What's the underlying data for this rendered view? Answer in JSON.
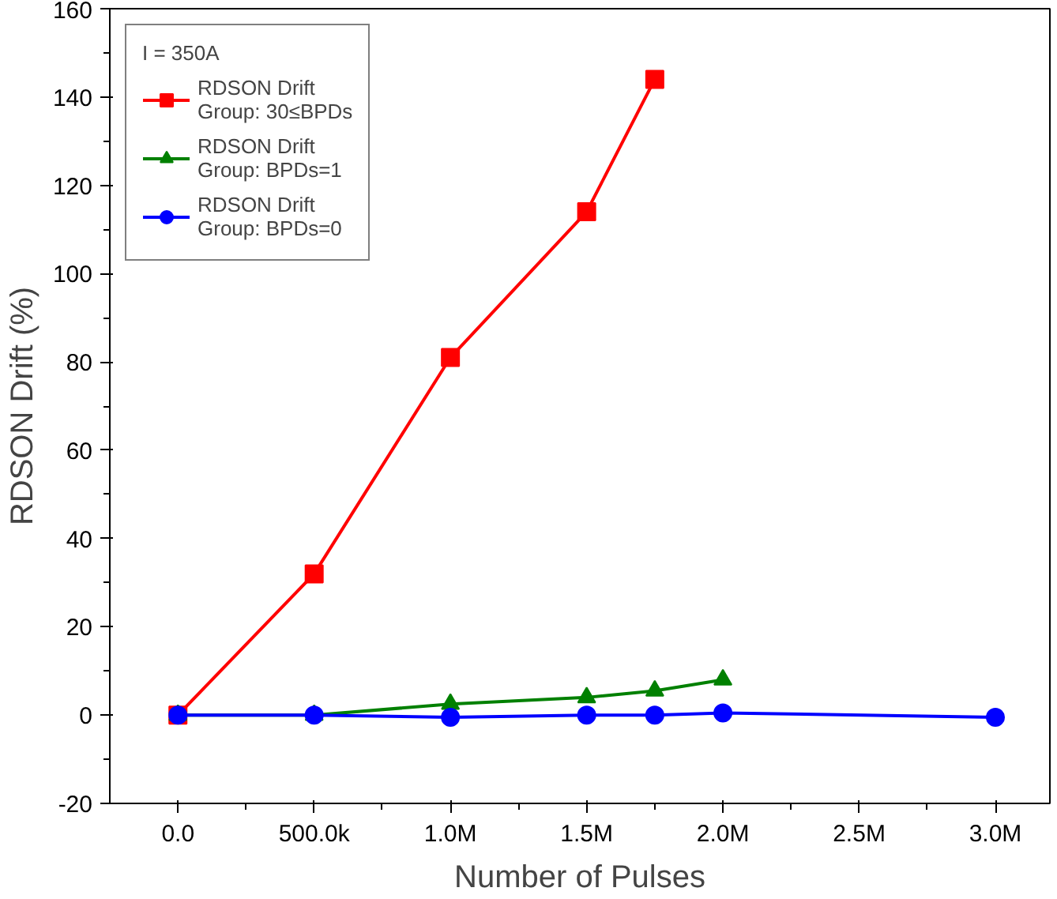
{
  "chart_data": {
    "type": "line",
    "xlabel": "Number of Pulses",
    "ylabel": "RDSON Drift (%)",
    "legend_title": "I = 350A",
    "xlim": [
      -250000,
      3200000
    ],
    "ylim": [
      -20,
      160
    ],
    "xticks": [
      {
        "value": 0,
        "label": "0.0"
      },
      {
        "value": 500000,
        "label": "500.0k"
      },
      {
        "value": 1000000,
        "label": "1.0M"
      },
      {
        "value": 1500000,
        "label": "1.5M"
      },
      {
        "value": 2000000,
        "label": "2.0M"
      },
      {
        "value": 2500000,
        "label": "2.5M"
      },
      {
        "value": 3000000,
        "label": "3.0M"
      }
    ],
    "yticks": [
      -20,
      0,
      20,
      40,
      60,
      80,
      100,
      120,
      140,
      160
    ],
    "grid": false,
    "legend": "top left",
    "series": [
      {
        "name": "RDSON Drift\nGroup: 30≤BPDs",
        "color": "#ff0000",
        "marker": "square",
        "x": [
          0,
          500000,
          1000000,
          1500000,
          1750000
        ],
        "values": [
          0,
          32,
          81,
          114,
          144
        ]
      },
      {
        "name": "RDSON Drift\nGroup: BPDs=1",
        "color": "#008000",
        "marker": "triangle",
        "x": [
          0,
          500000,
          1000000,
          1500000,
          1750000,
          2000000
        ],
        "values": [
          0,
          0,
          2.5,
          4,
          5.5,
          8
        ]
      },
      {
        "name": "RDSON Drift\nGroup: BPDs=0",
        "color": "#0000ff",
        "marker": "circle",
        "x": [
          0,
          500000,
          1000000,
          1500000,
          1750000,
          2000000,
          3000000
        ],
        "values": [
          0,
          0,
          -0.5,
          0,
          0,
          0.5,
          -0.5
        ]
      }
    ]
  }
}
